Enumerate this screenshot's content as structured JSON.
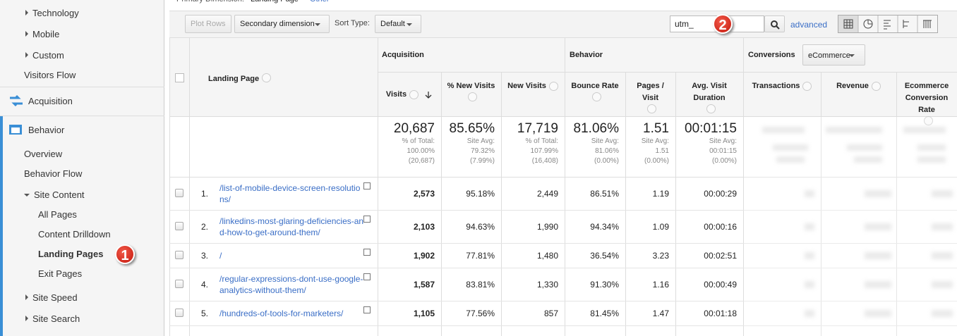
{
  "sidebar": {
    "items": [
      "Technology",
      "Mobile",
      "Custom",
      "Visitors Flow"
    ],
    "acquisition": "Acquisition",
    "behavior": "Behavior",
    "behavior_items": [
      "Overview",
      "Behavior Flow",
      "Site Content",
      "All Pages",
      "Content Drilldown",
      "Landing Pages",
      "Exit Pages",
      "Site Speed",
      "Site Search"
    ]
  },
  "badges": [
    "1",
    "2"
  ],
  "top": {
    "primary_label": "Primary Dimension:",
    "primary_value": "Landing Page",
    "other": "Other"
  },
  "toolbar": {
    "plot_rows": "Plot Rows",
    "secondary": "Secondary dimension",
    "sort_label": "Sort Type:",
    "sort_value": "Default",
    "search": "utm_",
    "advanced": "advanced"
  },
  "table": {
    "dimension": "Landing Page",
    "groups": [
      "Acquisition",
      "Behavior",
      "Conversions"
    ],
    "conversions_select": "eCommerce",
    "columns": [
      "Visits",
      "% New Visits",
      "New Visits",
      "Bounce Rate",
      "Pages / Visit",
      "Avg. Visit Duration",
      "Transactions",
      "Revenue",
      "Ecommerce Conversion Rate"
    ],
    "totals": [
      {
        "value": "20,687",
        "lines": [
          "% of Total:",
          "100.00%",
          "(20,687)"
        ]
      },
      {
        "value": "85.65%",
        "lines": [
          "Site Avg:",
          "79.32%",
          "(7.99%)"
        ]
      },
      {
        "value": "17,719",
        "lines": [
          "% of Total:",
          "107.99%",
          "(16,408)"
        ]
      },
      {
        "value": "81.06%",
        "lines": [
          "Site Avg:",
          "81.06%",
          "(0.00%)"
        ]
      },
      {
        "value": "1.51",
        "lines": [
          "Site Avg:",
          "1.51",
          "(0.00%)"
        ]
      },
      {
        "value": "00:01:15",
        "lines": [
          "Site Avg:",
          "00:01:15",
          "(0.00%)"
        ]
      }
    ],
    "rows": [
      {
        "index": "1.",
        "page": "/list-of-mobile-device-screen-resolutions/",
        "cells": [
          "2,573",
          "95.18%",
          "2,449",
          "86.51%",
          "1.19",
          "00:00:29"
        ]
      },
      {
        "index": "2.",
        "page": "/linkedins-most-glaring-deficiencies-and-how-to-get-around-them/",
        "cells": [
          "2,103",
          "94.63%",
          "1,990",
          "94.34%",
          "1.09",
          "00:00:16"
        ]
      },
      {
        "index": "3.",
        "page": "/",
        "cells": [
          "1,902",
          "77.81%",
          "1,480",
          "36.54%",
          "3.23",
          "00:02:51"
        ]
      },
      {
        "index": "4.",
        "page": "/regular-expressions-dont-use-google-analytics-without-them/",
        "cells": [
          "1,587",
          "83.81%",
          "1,330",
          "91.30%",
          "1.16",
          "00:00:49"
        ]
      },
      {
        "index": "5.",
        "page": "/hundreds-of-tools-for-marketers/",
        "cells": [
          "1,105",
          "77.56%",
          "857",
          "81.45%",
          "1.47",
          "00:01:18"
        ]
      }
    ]
  }
}
